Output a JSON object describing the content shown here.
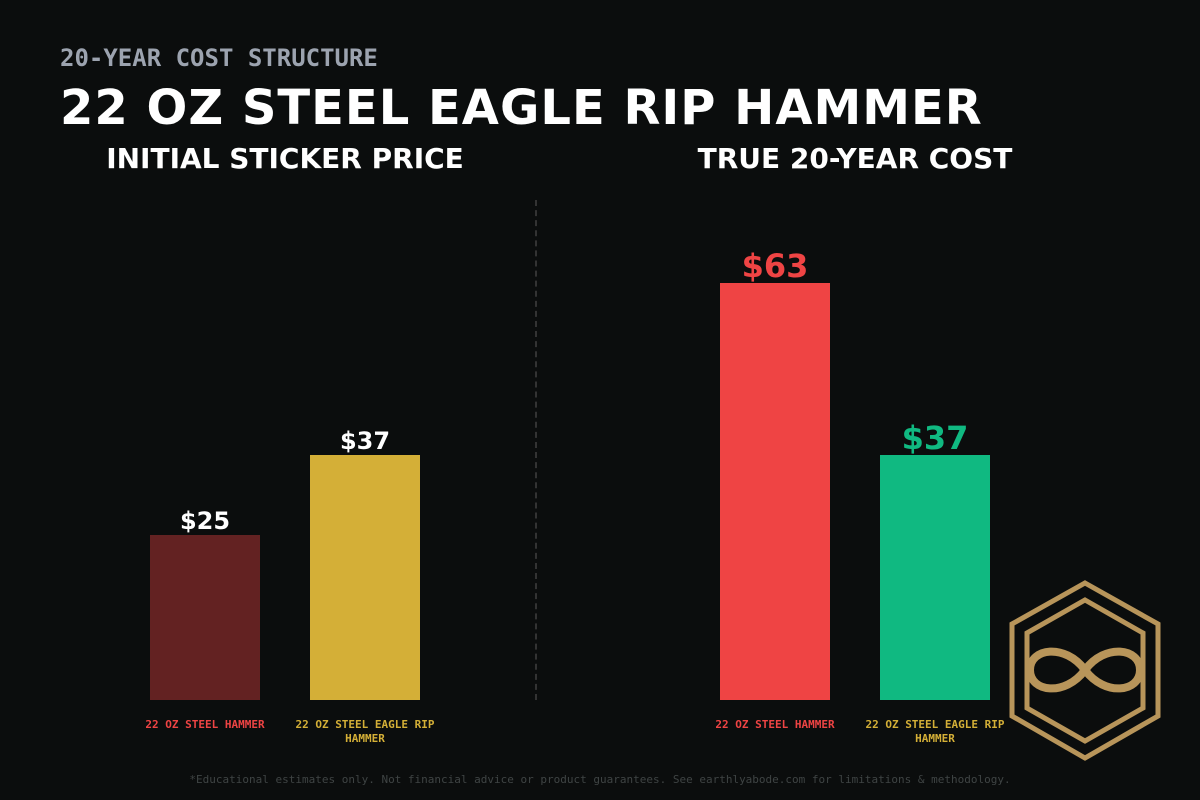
{
  "header": {
    "kicker": "20-YEAR COST STRUCTURE",
    "title": "22 OZ STEEL EAGLE RIP HAMMER"
  },
  "chart_data": [
    {
      "type": "bar",
      "title": "INITIAL STICKER PRICE",
      "categories": [
        "22 OZ STEEL HAMMER",
        "22 OZ STEEL EAGLE RIP HAMMER"
      ],
      "values": [
        25,
        37
      ],
      "value_labels": [
        "$25",
        "$37"
      ],
      "colors": [
        "#632222",
        "#d4af37"
      ],
      "value_label_colors": [
        "#ffffff",
        "#ffffff"
      ],
      "category_colors": [
        "#ef4444",
        "#d4af37"
      ]
    },
    {
      "type": "bar",
      "title": "TRUE 20-YEAR COST",
      "categories": [
        "22 OZ STEEL HAMMER",
        "22 OZ STEEL EAGLE RIP HAMMER"
      ],
      "values": [
        63,
        37
      ],
      "value_labels": [
        "$63",
        "$37"
      ],
      "colors": [
        "#ef4444",
        "#10b981"
      ],
      "value_label_colors": [
        "#ef4444",
        "#10b981"
      ],
      "category_colors": [
        "#ef4444",
        "#d4af37"
      ]
    }
  ],
  "footer": "*Educational estimates only. Not financial advice or product guarantees. See earthlyabode.com for limitations & methodology."
}
